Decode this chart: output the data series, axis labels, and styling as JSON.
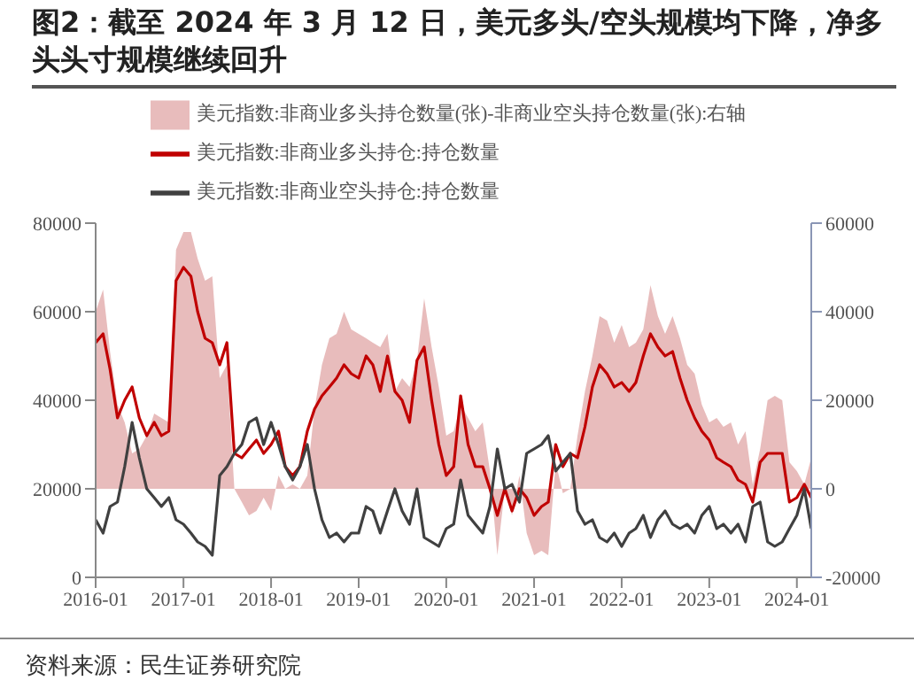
{
  "chart_data": {
    "type": "line",
    "title": "图2：截至 2024 年 3 月 12 日，美元多头/空头规模均下降，净多头头寸规模继续回升",
    "annotations": [
      "资料来源：民生证券研究院"
    ],
    "x": [
      "2016-01",
      "2016-02",
      "2016-03",
      "2016-04",
      "2016-05",
      "2016-06",
      "2016-07",
      "2016-08",
      "2016-09",
      "2016-10",
      "2016-11",
      "2016-12",
      "2017-01",
      "2017-02",
      "2017-03",
      "2017-04",
      "2017-05",
      "2017-06",
      "2017-07",
      "2017-08",
      "2017-09",
      "2017-10",
      "2017-11",
      "2017-12",
      "2018-01",
      "2018-02",
      "2018-03",
      "2018-04",
      "2018-05",
      "2018-06",
      "2018-07",
      "2018-08",
      "2018-09",
      "2018-10",
      "2018-11",
      "2018-12",
      "2019-01",
      "2019-02",
      "2019-03",
      "2019-04",
      "2019-05",
      "2019-06",
      "2019-07",
      "2019-08",
      "2019-09",
      "2019-10",
      "2019-11",
      "2019-12",
      "2020-01",
      "2020-02",
      "2020-03",
      "2020-04",
      "2020-05",
      "2020-06",
      "2020-07",
      "2020-08",
      "2020-09",
      "2020-10",
      "2020-11",
      "2020-12",
      "2021-01",
      "2021-02",
      "2021-03",
      "2021-04",
      "2021-05",
      "2021-06",
      "2021-07",
      "2021-08",
      "2021-09",
      "2021-10",
      "2021-11",
      "2021-12",
      "2022-01",
      "2022-02",
      "2022-03",
      "2022-04",
      "2022-05",
      "2022-06",
      "2022-07",
      "2022-08",
      "2022-09",
      "2022-10",
      "2022-11",
      "2022-12",
      "2023-01",
      "2023-02",
      "2023-03",
      "2023-04",
      "2023-05",
      "2023-06",
      "2023-07",
      "2023-08",
      "2023-09",
      "2023-10",
      "2023-11",
      "2023-12",
      "2024-01",
      "2024-02",
      "2024-03"
    ],
    "series": [
      {
        "name": "美元指数:非商业多头持仓数量(张)-非商业空头持仓数量(张):右轴",
        "type": "area",
        "axis": "y2",
        "color": "#e8bcbc",
        "values": [
          40000,
          45000,
          31000,
          19000,
          15000,
          8000,
          9000,
          12000,
          17000,
          16000,
          15000,
          54000,
          58000,
          58000,
          52000,
          47000,
          48000,
          25000,
          28000,
          0,
          -3000,
          -6000,
          -5000,
          -2000,
          -5000,
          3000,
          0,
          1000,
          0,
          3000,
          18000,
          28000,
          34000,
          35000,
          40000,
          36000,
          35000,
          34000,
          33000,
          32000,
          35000,
          22000,
          25000,
          23000,
          29000,
          43000,
          32000,
          23000,
          12000,
          13000,
          19000,
          16000,
          13000,
          15000,
          4000,
          -15000,
          0,
          -6000,
          3000,
          -10000,
          -15000,
          -14000,
          -15000,
          6000,
          -1000,
          0,
          12000,
          22000,
          30000,
          39000,
          38000,
          33000,
          37000,
          32000,
          33000,
          36000,
          46000,
          39000,
          35000,
          39000,
          34000,
          28000,
          26000,
          19000,
          15000,
          16000,
          14000,
          15000,
          10000,
          13000,
          1000,
          9000,
          20000,
          21000,
          20000,
          6000,
          4000,
          1000,
          7000
        ]
      },
      {
        "name": "美元指数:非商业多头持仓:持仓数量",
        "color": "#c00000",
        "values": [
          53000,
          55000,
          47000,
          36000,
          40000,
          43000,
          36000,
          32000,
          35000,
          32000,
          33000,
          67000,
          70000,
          68000,
          60000,
          54000,
          53000,
          48000,
          53000,
          28000,
          27000,
          29000,
          31000,
          28000,
          30000,
          33000,
          25000,
          23000,
          25000,
          33000,
          38000,
          41000,
          43000,
          45000,
          48000,
          46000,
          45000,
          50000,
          48000,
          42000,
          50000,
          42000,
          40000,
          35000,
          49000,
          52000,
          40000,
          30000,
          23000,
          25000,
          41000,
          30000,
          25000,
          25000,
          20000,
          14000,
          20000,
          15000,
          20000,
          18000,
          14000,
          16000,
          17000,
          30000,
          25000,
          28000,
          27000,
          34000,
          43000,
          48000,
          46000,
          43000,
          44000,
          42000,
          44000,
          50000,
          55000,
          52000,
          50000,
          51000,
          45000,
          40000,
          36000,
          33000,
          31000,
          27000,
          26000,
          25000,
          22000,
          21000,
          17000,
          26000,
          28000,
          28000,
          28000,
          17000,
          18000,
          21000,
          18000
        ]
      },
      {
        "name": "美元指数:非商业空头持仓:持仓数量",
        "color": "#404040",
        "values": [
          13000,
          10000,
          16000,
          17000,
          25000,
          35000,
          27000,
          20000,
          18000,
          16000,
          18000,
          13000,
          12000,
          10000,
          8000,
          7000,
          5000,
          23000,
          25000,
          28000,
          30000,
          35000,
          36000,
          30000,
          35000,
          30000,
          25000,
          22000,
          25000,
          30000,
          20000,
          13000,
          9000,
          10000,
          8000,
          10000,
          10000,
          16000,
          15000,
          10000,
          15000,
          20000,
          15000,
          12000,
          20000,
          9000,
          8000,
          7000,
          11000,
          12000,
          22000,
          14000,
          12000,
          10000,
          16000,
          29000,
          20000,
          21000,
          17000,
          28000,
          29000,
          30000,
          32000,
          24000,
          26000,
          28000,
          15000,
          12000,
          13000,
          9000,
          8000,
          10000,
          7000,
          10000,
          11000,
          14000,
          9000,
          13000,
          15000,
          12000,
          11000,
          12000,
          10000,
          14000,
          16000,
          11000,
          12000,
          10000,
          12000,
          8000,
          16000,
          17000,
          8000,
          7000,
          8000,
          11000,
          14000,
          20000,
          11000
        ]
      }
    ],
    "xlim": [
      "2016-01",
      "2024-03"
    ],
    "xticks": [
      "2016-01",
      "2017-01",
      "2018-01",
      "2019-01",
      "2020-01",
      "2021-01",
      "2022-01",
      "2023-01",
      "2024-01"
    ],
    "ylim": [
      0,
      80000
    ],
    "yticks": [
      0,
      20000,
      40000,
      60000,
      80000
    ],
    "y2lim": [
      -20000,
      60000
    ],
    "y2ticks": [
      -20000,
      0,
      20000,
      40000,
      60000
    ],
    "legend": "top",
    "grid": false,
    "marker": "none",
    "line_style": "solid"
  }
}
